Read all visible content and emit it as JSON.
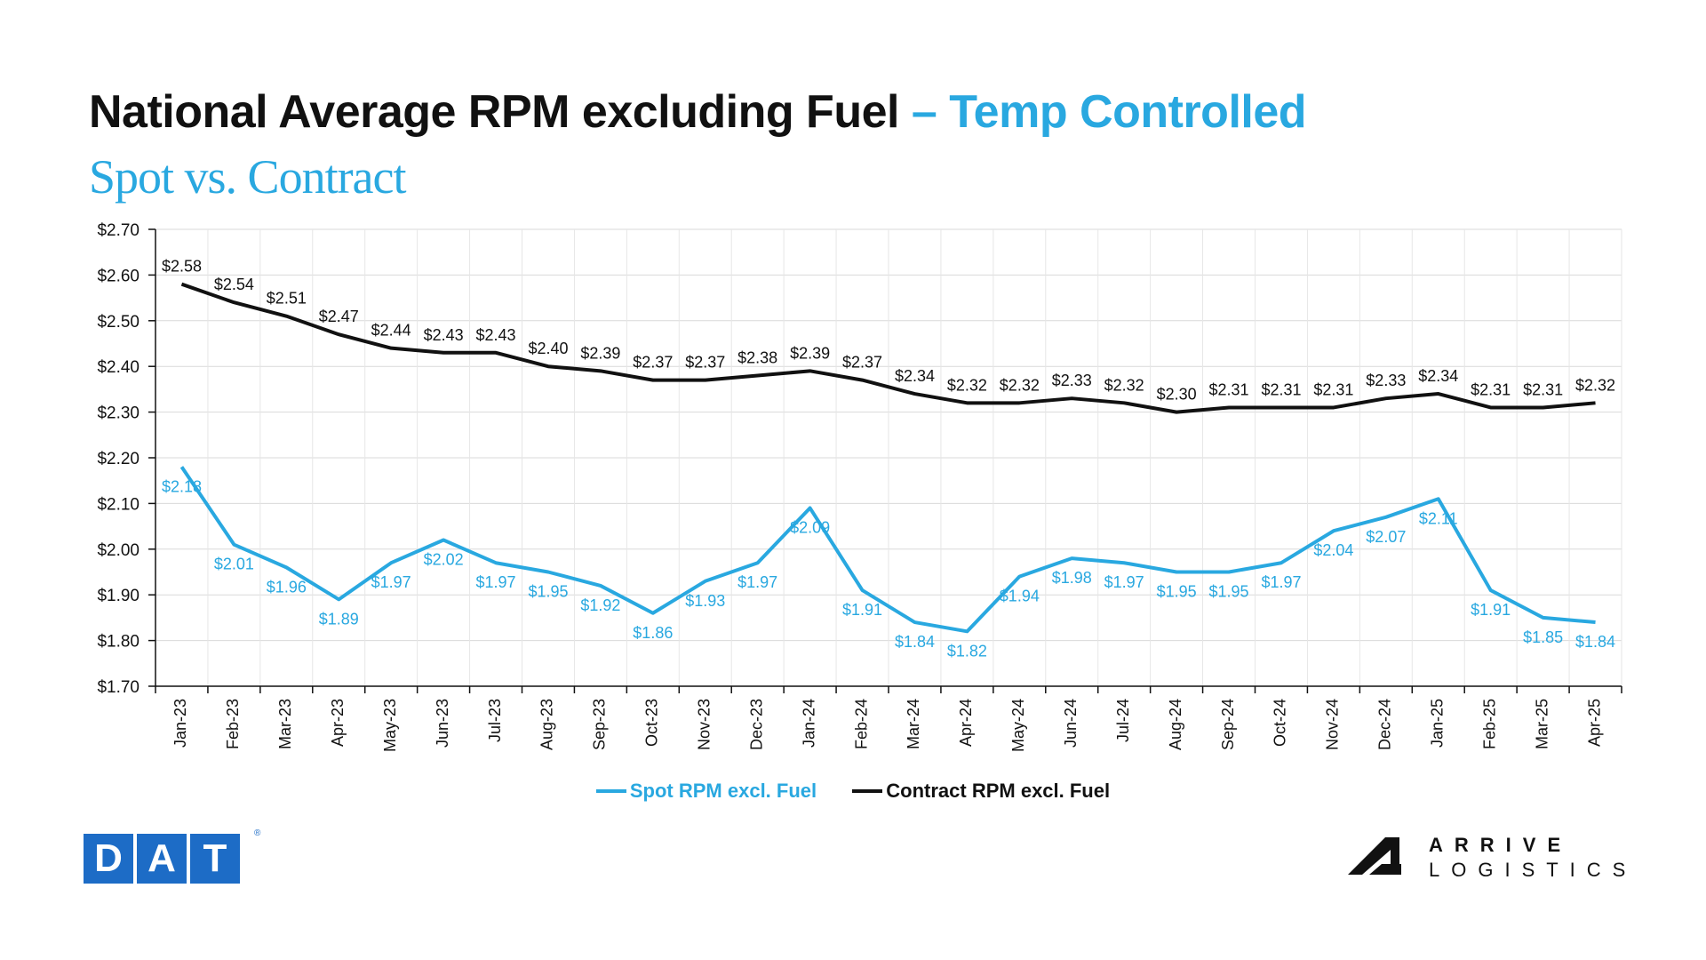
{
  "header": {
    "title_main": "National Average RPM excluding Fuel",
    "title_accent": "– Temp Controlled",
    "subtitle": "Spot vs. Contract"
  },
  "colors": {
    "spot": "#29A8E0",
    "contract": "#111111",
    "accent": "#29A8E0",
    "dat_blue": "#1D6CC6"
  },
  "chart_data": {
    "type": "line",
    "categories": [
      "Jan-23",
      "Feb-23",
      "Mar-23",
      "Apr-23",
      "May-23",
      "Jun-23",
      "Jul-23",
      "Aug-23",
      "Sep-23",
      "Oct-23",
      "Nov-23",
      "Dec-23",
      "Jan-24",
      "Feb-24",
      "Mar-24",
      "Apr-24",
      "May-24",
      "Jun-24",
      "Jul-24",
      "Aug-24",
      "Sep-24",
      "Oct-24",
      "Nov-24",
      "Dec-24",
      "Jan-25",
      "Feb-25",
      "Mar-25",
      "Apr-25"
    ],
    "series": [
      {
        "name": "Spot RPM excl. Fuel",
        "color": "#29A8E0",
        "values": [
          2.18,
          2.01,
          1.96,
          1.89,
          1.97,
          2.02,
          1.97,
          1.95,
          1.92,
          1.86,
          1.93,
          1.97,
          2.09,
          1.91,
          1.84,
          1.82,
          1.94,
          1.98,
          1.97,
          1.95,
          1.95,
          1.97,
          2.04,
          2.07,
          2.11,
          1.91,
          1.85,
          1.84
        ],
        "labels": [
          "$2.18",
          "$2.01",
          "$1.96",
          "$1.89",
          "$1.97",
          "$2.02",
          "$1.97",
          "$1.95",
          "$1.92",
          "$1.86",
          "$1.93",
          "$1.97",
          "$2.09",
          "$1.91",
          "$1.84",
          "$1.82",
          "$1.94",
          "$1.98",
          "$1.97",
          "$1.95",
          "$1.95",
          "$1.97",
          "$2.04",
          "$2.07",
          "$2.11",
          "$1.91",
          "$1.85",
          "$1.84"
        ]
      },
      {
        "name": "Contract RPM excl. Fuel",
        "color": "#111111",
        "values": [
          2.58,
          2.54,
          2.51,
          2.47,
          2.44,
          2.43,
          2.43,
          2.4,
          2.39,
          2.37,
          2.37,
          2.38,
          2.39,
          2.37,
          2.34,
          2.32,
          2.32,
          2.33,
          2.32,
          2.3,
          2.31,
          2.31,
          2.31,
          2.33,
          2.34,
          2.31,
          2.31,
          2.32
        ],
        "labels": [
          "$2.58",
          "$2.54",
          "$2.51",
          "$2.47",
          "$2.44",
          "$2.43",
          "$2.43",
          "$2.40",
          "$2.39",
          "$2.37",
          "$2.37",
          "$2.38",
          "$2.39",
          "$2.37",
          "$2.34",
          "$2.32",
          "$2.32",
          "$2.33",
          "$2.32",
          "$2.30",
          "$2.31",
          "$2.31",
          "$2.31",
          "$2.33",
          "$2.34",
          "$2.31",
          "$2.31",
          "$2.32"
        ]
      }
    ],
    "ylim": [
      1.7,
      2.7
    ],
    "yticks": [
      "$1.70",
      "$1.80",
      "$1.90",
      "$2.00",
      "$2.10",
      "$2.20",
      "$2.30",
      "$2.40",
      "$2.50",
      "$2.60",
      "$2.70"
    ],
    "grid": true,
    "legend_position": "bottom"
  },
  "logos": {
    "dat": {
      "letters": [
        "D",
        "A",
        "T"
      ],
      "reg": "®"
    },
    "arrive": {
      "line1": "ARRIVE",
      "line2": "LOGISTICS"
    }
  }
}
